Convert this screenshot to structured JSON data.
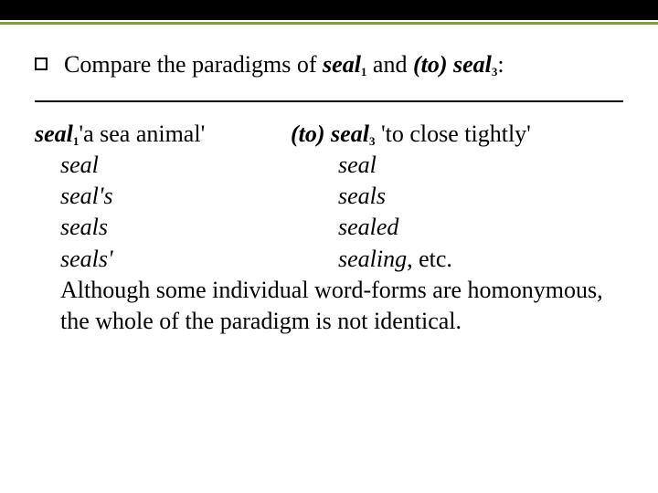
{
  "colors": {
    "background": "#ffffff",
    "topbar": "#000000",
    "accent": "#7b9e3b",
    "text": "#000000",
    "rule": "#000000"
  },
  "typography": {
    "fontFamily": "Times New Roman",
    "baseSize": 26,
    "subSize": 13
  },
  "bullet": {
    "pre": "Compare the paradigms of ",
    "seal1": "seal",
    "seal1_sub": "1",
    "and": " and ",
    "to_open": "(to)",
    "space": " ",
    "seal3": "seal",
    "seal3_sub": "3",
    "colon": ":"
  },
  "leftHead": {
    "word": "seal",
    "sub": "1",
    "gloss": "'a sea animal'"
  },
  "rightHead": {
    "to": "(to)",
    "space": " ",
    "word": "seal",
    "sub": "3",
    "gloss_pre": " ",
    "gloss": "'to close tightly'"
  },
  "leftForms": [
    "seal",
    "seal's",
    "seals",
    "seals'"
  ],
  "rightForms": {
    "r1": "seal",
    "r2": "seals",
    "r3": "sealed",
    "r4_italic": "sealing",
    "r4_plain": ", etc."
  },
  "closing": "Although some individual word-forms are homonymous, the whole of the paradigm is not identical."
}
